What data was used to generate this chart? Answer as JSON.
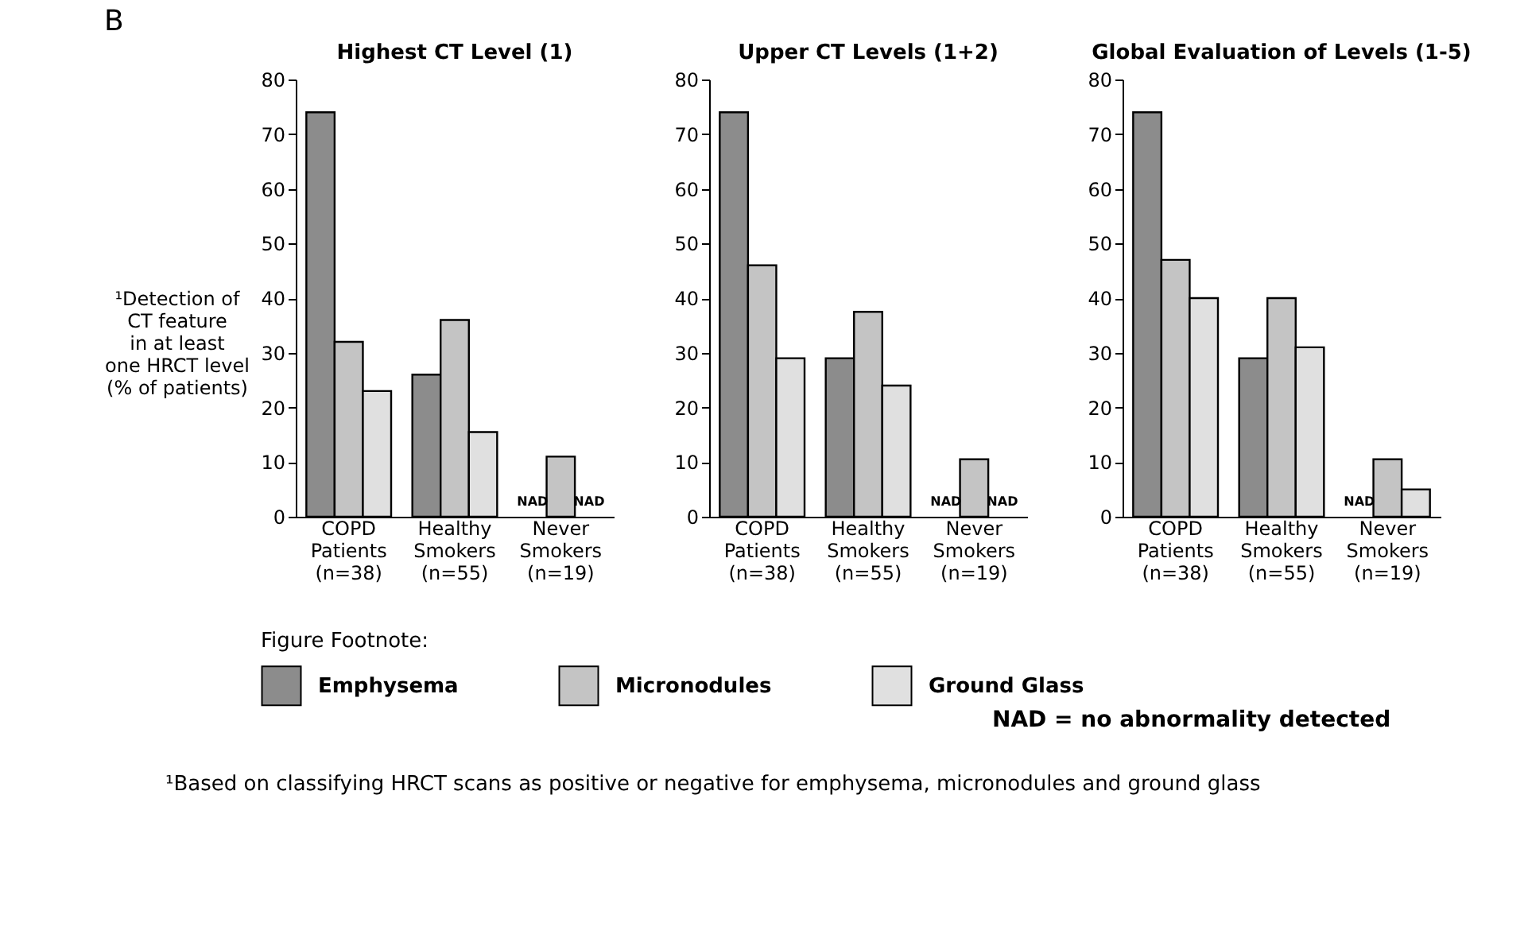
{
  "chart_data": [
    {
      "type": "bar",
      "title": "Highest CT Level (1)",
      "ylabel": "¹Detection of\nCT feature\nin at least\none HRCT level\n(% of patients)",
      "legend_title": "Figure Footnote:",
      "legend": "bottom",
      "grid": false,
      "annotations": [
        "B",
        "NAD = no abnormality detected",
        "¹Based on classifying HRCT scans as positive or negative for emphysema, micronodules and ground glass"
      ],
      "categories": [
        "COPD\nPatients\n(n=38)",
        "Healthy\nSmokers\n(n=55)",
        "Never\nSmokers\n(n=19)"
      ],
      "ylim": [
        0,
        80
      ],
      "yticks": [
        0,
        10,
        20,
        30,
        40,
        50,
        60,
        70,
        80
      ],
      "series": [
        {
          "name": "Emphysema",
          "color": "#8c8c8c",
          "values": [
            74,
            26,
            null
          ],
          "value_labels": [
            null,
            null,
            "NAD"
          ]
        },
        {
          "name": "Micronodules",
          "color": "#c4c4c4",
          "values": [
            32,
            36,
            11
          ]
        },
        {
          "name": "Ground Glass",
          "color": "#e0e0e0",
          "values": [
            23,
            15.5,
            null
          ],
          "value_labels": [
            null,
            null,
            "NAD"
          ]
        }
      ]
    },
    {
      "type": "bar",
      "title": "Upper CT Levels (1+2)",
      "grid": false,
      "legend": false,
      "categories": [
        "COPD\nPatients\n(n=38)",
        "Healthy\nSmokers\n(n=55)",
        "Never\nSmokers\n(n=19)"
      ],
      "ylim": [
        0,
        80
      ],
      "yticks": [
        0,
        10,
        20,
        30,
        40,
        50,
        60,
        70,
        80
      ],
      "series": [
        {
          "color": "#8c8c8c",
          "values": [
            74,
            29,
            null
          ],
          "value_labels": [
            null,
            null,
            "NAD"
          ]
        },
        {
          "color": "#c4c4c4",
          "values": [
            46,
            37.5,
            10.5
          ]
        },
        {
          "color": "#e0e0e0",
          "values": [
            29,
            24,
            null
          ],
          "value_labels": [
            null,
            null,
            "NAD"
          ]
        }
      ]
    },
    {
      "type": "bar",
      "title": "Global Evaluation of Levels (1-5)",
      "grid": false,
      "legend": false,
      "categories": [
        "COPD\nPatients\n(n=38)",
        "Healthy\nSmokers\n(n=55)",
        "Never\nSmokers\n(n=19)"
      ],
      "ylim": [
        0,
        80
      ],
      "yticks": [
        0,
        10,
        20,
        30,
        40,
        50,
        60,
        70,
        80
      ],
      "series": [
        {
          "color": "#8c8c8c",
          "values": [
            74,
            29,
            null
          ],
          "value_labels": [
            null,
            null,
            "NAD"
          ]
        },
        {
          "color": "#c4c4c4",
          "values": [
            47,
            40,
            10.5
          ]
        },
        {
          "color": "#e0e0e0",
          "values": [
            40,
            31,
            5
          ]
        }
      ]
    }
  ]
}
